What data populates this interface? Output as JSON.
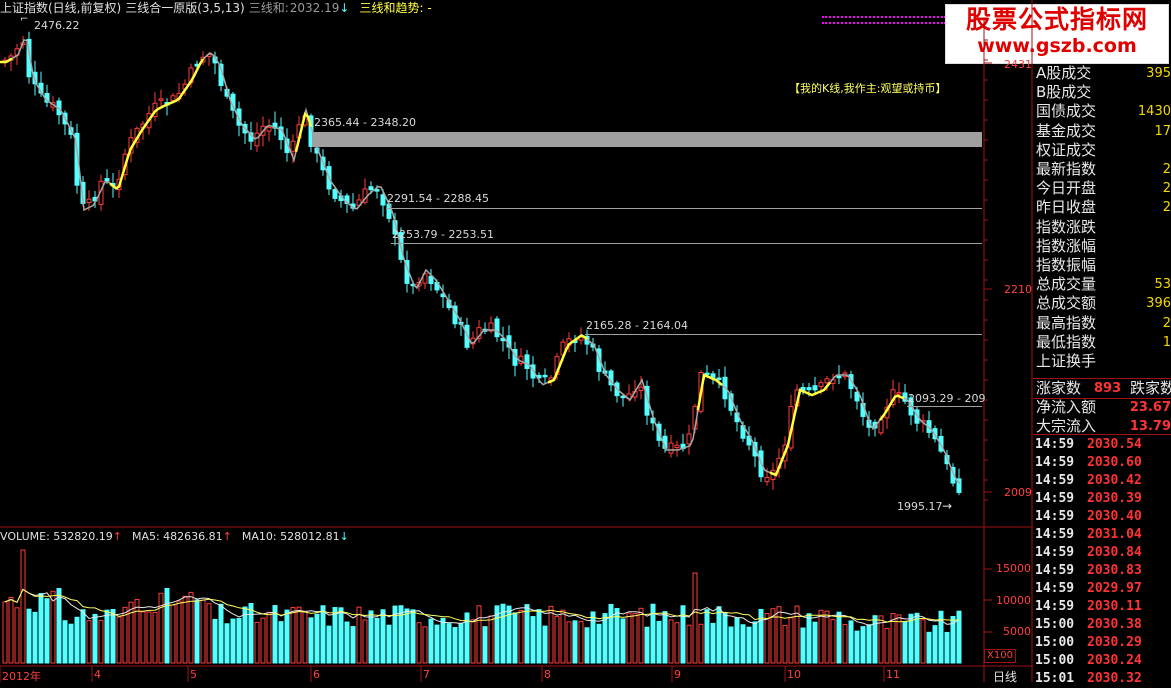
{
  "header": {
    "title": "上证指数(日线,前复权)",
    "indicator": "三线合一原版(3,5,13)",
    "line_label": "三线和:",
    "line_value": "2032.19",
    "line_arrow": "↓",
    "trend_label": "三线和趋势: -"
  },
  "watermark": {
    "title": "股票公式指标网",
    "url": "www.gszb.com"
  },
  "price_chart": {
    "annotation": "【我的K线,我作主:观望或持币】",
    "high_label": "2476.22",
    "low_label": "1995.17",
    "low_arrow": "→",
    "y_labels": [
      {
        "text": "2431",
        "v": 2431
      },
      {
        "text": "2210",
        "v": 2210
      },
      {
        "text": "2009",
        "v": 2009
      }
    ],
    "levels": [
      {
        "text": "2365.44 - 2348.20"
      },
      {
        "text": "2291.54 - 2288.45"
      },
      {
        "text": "2253.79 - 2253.51"
      },
      {
        "text": "2165.28 - 2164.04"
      },
      {
        "text": "2093.29 - 209"
      }
    ]
  },
  "volume_chart": {
    "vol_label": "VOLUME: 532820.19",
    "vol_arrow": "↑",
    "ma5_label": "MA5: 482636.81",
    "ma5_arrow": "↑",
    "ma10_label": "MA10: 528012.81",
    "ma10_arrow": "↓",
    "y_labels": [
      "15000",
      "10000",
      "5000"
    ],
    "x100": "X100"
  },
  "x_axis": {
    "labels": [
      "2012年",
      "4",
      "5",
      "6",
      "7",
      "8",
      "9",
      "10",
      "11"
    ],
    "period": "日线"
  },
  "panel": {
    "rows": [
      {
        "label": "A股成交",
        "value": "395"
      },
      {
        "label": "B股成交",
        "value": ""
      },
      {
        "label": "国债成交",
        "value": "1430"
      },
      {
        "label": "基金成交",
        "value": "17"
      },
      {
        "label": "权证成交",
        "value": ""
      },
      {
        "label": "最新指数",
        "value": "2"
      },
      {
        "label": "今日开盘",
        "value": "2"
      },
      {
        "label": "昨日收盘",
        "value": "2"
      },
      {
        "label": "指数涨跌",
        "value": ""
      },
      {
        "label": "指数涨幅",
        "value": ""
      },
      {
        "label": "指数振幅",
        "value": ""
      },
      {
        "label": "总成交量",
        "value": "53"
      },
      {
        "label": "总成交额",
        "value": "396"
      },
      {
        "label": "最高指数",
        "value": "2"
      },
      {
        "label": "最低指数",
        "value": "1"
      },
      {
        "label": "上证换手",
        "value": ""
      }
    ],
    "breadth": {
      "up_label": "涨家数",
      "up_value": "893",
      "down_label": "跌家数"
    },
    "flows": [
      {
        "label": "净流入额",
        "value": "23.67"
      },
      {
        "label": "大宗流入",
        "value": "13.79"
      }
    ],
    "ticks": [
      {
        "time": "14:59",
        "price": "2030.54"
      },
      {
        "time": "14:59",
        "price": "2030.60"
      },
      {
        "time": "14:59",
        "price": "2030.42"
      },
      {
        "time": "14:59",
        "price": "2030.39"
      },
      {
        "time": "14:59",
        "price": "2030.40"
      },
      {
        "time": "14:59",
        "price": "2031.04"
      },
      {
        "time": "14:59",
        "price": "2030.84"
      },
      {
        "time": "14:59",
        "price": "2030.83"
      },
      {
        "time": "14:59",
        "price": "2029.97"
      },
      {
        "time": "14:59",
        "price": "2030.11"
      },
      {
        "time": "15:00",
        "price": "2030.38"
      },
      {
        "time": "15:00",
        "price": "2030.29"
      },
      {
        "time": "15:00",
        "price": "2030.24"
      },
      {
        "time": "15:01",
        "price": "2030.32"
      }
    ]
  },
  "colors": {
    "up": "#ff3c3c",
    "down": "#54ffff",
    "ma": "#a8a8a8",
    "ma_highlight": "#ffff40",
    "axis": "#a01010",
    "label_red": "#ff4040",
    "zone": "#a0a0a0",
    "accent_magenta": "#ff00ff"
  }
}
